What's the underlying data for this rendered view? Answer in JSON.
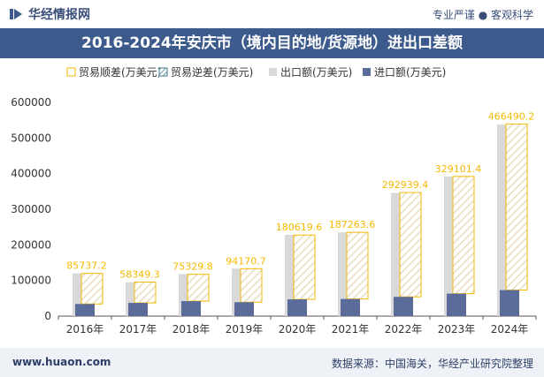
{
  "header": {
    "brand": "华经情报网",
    "tagline_left": "专业严谨",
    "tagline_right": "客观科学"
  },
  "footer": {
    "url": "www.huaon.com",
    "source": "数据来源：中国海关，华经产业研究院整理"
  },
  "colors": {
    "brand": "#3d5a8c",
    "surplus": "#f5b800",
    "deficit": "#3d7a8c",
    "export": "#d9d9d9",
    "import": "#5b6c9a"
  },
  "chart_data": {
    "type": "bar",
    "title": "2016-2024年安庆市（境内目的地/货源地）进出口差额",
    "xlabel": "",
    "ylabel": "",
    "categories": [
      "2016年",
      "2017年",
      "2018年",
      "2019年",
      "2020年",
      "2021年",
      "2022年",
      "2023年",
      "2024年"
    ],
    "ylim": [
      0,
      600000
    ],
    "yticks": [
      "0",
      "100000",
      "200000",
      "300000",
      "400000",
      "500000",
      "600000"
    ],
    "legend_position": "top",
    "grid": false,
    "series": [
      {
        "name": "贸易顺差(万美元)",
        "values": [
          85737.2,
          58349.3,
          75329.8,
          94170.7,
          180619.6,
          187263.6,
          292939.4,
          329101.4,
          466490.2
        ],
        "labels": [
          "85737.2",
          "58349.3",
          "75329.8",
          "94170.7",
          "180619.6",
          "187263.6",
          "292939.4",
          "329101.4",
          "466490.2"
        ]
      },
      {
        "name": "贸易逆差(万美元)",
        "values": [
          0,
          0,
          0,
          0,
          0,
          0,
          0,
          0,
          0
        ]
      },
      {
        "name": "出口额(万美元)",
        "values": [
          120000,
          95000,
          118000,
          133000,
          228000,
          235000,
          346000,
          392000,
          538000
        ]
      },
      {
        "name": "进口额(万美元)",
        "values": [
          34000,
          37000,
          42000,
          39000,
          47000,
          48000,
          54000,
          63000,
          73000
        ]
      }
    ]
  }
}
